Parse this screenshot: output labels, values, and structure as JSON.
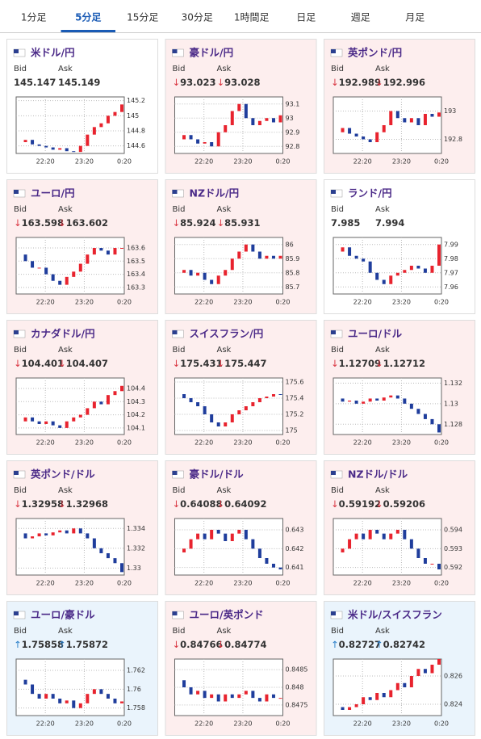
{
  "tabs": [
    "1分足",
    "5分足",
    "15分足",
    "30分足",
    "1時間足",
    "日足",
    "週足",
    "月足"
  ],
  "active_tab": 1,
  "bid_label": "Bid",
  "ask_label": "Ask",
  "time_labels": [
    "22:20",
    "23:20",
    "0:20"
  ],
  "cards": [
    {
      "name": "米ドル/円",
      "trend": "flat",
      "bid": 145.147,
      "ask": 145.149,
      "ylim": [
        144.5,
        145.25
      ],
      "yticks": [
        145.2,
        145,
        144.8,
        144.6
      ],
      "closes": [
        144.65,
        144.68,
        144.62,
        144.6,
        144.58,
        144.55,
        144.57,
        144.53,
        144.52,
        144.6,
        144.75,
        144.85,
        144.9,
        145.0,
        145.05,
        145.15
      ]
    },
    {
      "name": "豪ドル/円",
      "trend": "down",
      "arrow": "↓",
      "bid": 93.023,
      "ask": 93.028,
      "ylim": [
        92.75,
        93.15
      ],
      "yticks": [
        93.1,
        93,
        92.9,
        92.8
      ],
      "closes": [
        92.85,
        92.88,
        92.85,
        92.82,
        92.83,
        92.8,
        92.9,
        92.95,
        93.05,
        93.1,
        93.0,
        92.95,
        92.98,
        93.0,
        92.97,
        93.02
      ]
    },
    {
      "name": "英ポンド/円",
      "trend": "down",
      "arrow": "↓",
      "bid": 192.989,
      "ask": 192.996,
      "ylim": [
        192.7,
        193.1
      ],
      "yticks": [
        193,
        192.8
      ],
      "closes": [
        192.85,
        192.88,
        192.84,
        192.82,
        192.8,
        192.78,
        192.85,
        192.9,
        193.0,
        192.95,
        192.92,
        192.95,
        192.9,
        192.98,
        192.96,
        192.99
      ]
    },
    {
      "name": "ユーロ/円",
      "trend": "down",
      "arrow": "↓",
      "bid": 163.598,
      "ask": 163.602,
      "ylim": [
        163.25,
        163.68
      ],
      "yticks": [
        163.6,
        163.5,
        163.4,
        163.3
      ],
      "closes": [
        163.55,
        163.5,
        163.45,
        163.45,
        163.4,
        163.35,
        163.32,
        163.38,
        163.42,
        163.48,
        163.55,
        163.6,
        163.58,
        163.55,
        163.6,
        163.6
      ]
    },
    {
      "name": "NZドル/円",
      "trend": "down",
      "arrow": "↓",
      "bid": 85.924,
      "ask": 85.931,
      "ylim": [
        85.65,
        86.05
      ],
      "yticks": [
        86,
        85.9,
        85.8,
        85.7
      ],
      "closes": [
        85.8,
        85.82,
        85.78,
        85.8,
        85.75,
        85.72,
        85.78,
        85.82,
        85.9,
        85.95,
        86.0,
        85.95,
        85.9,
        85.92,
        85.9,
        85.92
      ]
    },
    {
      "name": "ランド/円",
      "trend": "flat",
      "bid": 7.985,
      "ask": 7.994,
      "ylim": [
        7.955,
        7.995
      ],
      "yticks": [
        7.99,
        7.98,
        7.97,
        7.96
      ],
      "closes": [
        7.985,
        7.988,
        7.982,
        7.98,
        7.978,
        7.97,
        7.965,
        7.962,
        7.968,
        7.97,
        7.972,
        7.975,
        7.973,
        7.97,
        7.975,
        7.99
      ]
    },
    {
      "name": "カナダドル/円",
      "trend": "down",
      "arrow": "↓",
      "bid": 104.401,
      "ask": 104.407,
      "ylim": [
        104.05,
        104.48
      ],
      "yticks": [
        104.4,
        104.3,
        104.2,
        104.1
      ],
      "closes": [
        104.15,
        104.18,
        104.15,
        104.13,
        104.15,
        104.12,
        104.1,
        104.15,
        104.18,
        104.2,
        104.25,
        104.3,
        104.28,
        104.35,
        104.38,
        104.42
      ]
    },
    {
      "name": "スイスフラン/円",
      "trend": "down",
      "arrow": "↓",
      "bid": 175.431,
      "ask": 175.447,
      "ylim": [
        174.95,
        175.65
      ],
      "yticks": [
        175.6,
        175.4,
        175.2,
        175
      ],
      "closes": [
        175.45,
        175.4,
        175.35,
        175.3,
        175.2,
        175.1,
        175.05,
        175.1,
        175.2,
        175.25,
        175.3,
        175.35,
        175.4,
        175.42,
        175.45,
        175.44
      ]
    },
    {
      "name": "ユーロ/ドル",
      "trend": "down",
      "arrow": "↓",
      "bid": 1.12709,
      "ask": 1.12712,
      "ylim": [
        1.127,
        1.1325
      ],
      "yticks": [
        1.132,
        1.13,
        1.128
      ],
      "closes": [
        1.1305,
        1.1302,
        1.1303,
        1.13,
        1.1302,
        1.1305,
        1.1303,
        1.1306,
        1.1308,
        1.1305,
        1.13,
        1.1295,
        1.129,
        1.1285,
        1.128,
        1.1272
      ]
    },
    {
      "name": "英ポンド/ドル",
      "trend": "down",
      "arrow": "↓",
      "bid": 1.32958,
      "ask": 1.32968,
      "ylim": [
        1.3293,
        1.335
      ],
      "yticks": [
        1.334,
        1.332,
        1.33
      ],
      "closes": [
        1.3335,
        1.333,
        1.3332,
        1.3335,
        1.3333,
        1.3336,
        1.3338,
        1.3335,
        1.334,
        1.3335,
        1.333,
        1.332,
        1.3315,
        1.331,
        1.3305,
        1.3296
      ]
    },
    {
      "name": "豪ドル/ドル",
      "trend": "down",
      "arrow": "↓",
      "bid": 0.64088,
      "ask": 0.64092,
      "ylim": [
        0.6406,
        0.6436
      ],
      "yticks": [
        0.643,
        0.642,
        0.641
      ],
      "closes": [
        0.6418,
        0.642,
        0.6425,
        0.6428,
        0.6425,
        0.643,
        0.6428,
        0.6424,
        0.6428,
        0.643,
        0.6425,
        0.642,
        0.6415,
        0.6412,
        0.641,
        0.6409
      ]
    },
    {
      "name": "NZドル/ドル",
      "trend": "down",
      "arrow": "↓",
      "bid": 0.59192,
      "ask": 0.59206,
      "ylim": [
        0.5916,
        0.5946
      ],
      "yticks": [
        0.594,
        0.593,
        0.592
      ],
      "closes": [
        0.5928,
        0.593,
        0.5935,
        0.5938,
        0.5935,
        0.594,
        0.5938,
        0.5935,
        0.5938,
        0.594,
        0.5935,
        0.593,
        0.5925,
        0.5922,
        0.5922,
        0.5919
      ]
    },
    {
      "name": "ユーロ/豪ドル",
      "trend": "up",
      "arrow": "↑",
      "bid": 1.75858,
      "ask": 1.75872,
      "ylim": [
        1.7572,
        1.7632
      ],
      "yticks": [
        1.762,
        1.76,
        1.758
      ],
      "closes": [
        1.761,
        1.7605,
        1.7595,
        1.759,
        1.7595,
        1.759,
        1.7585,
        1.7588,
        1.758,
        1.7585,
        1.7595,
        1.76,
        1.7595,
        1.759,
        1.7585,
        1.7587
      ]
    },
    {
      "name": "ユーロ/英ポンド",
      "trend": "down",
      "arrow": "↓",
      "bid": 0.84766,
      "ask": 0.84774,
      "ylim": [
        0.8472,
        0.8488
      ],
      "yticks": [
        0.8485,
        0.848,
        0.8475
      ],
      "closes": [
        0.8482,
        0.848,
        0.8478,
        0.8479,
        0.8477,
        0.8478,
        0.8476,
        0.8478,
        0.8477,
        0.8478,
        0.8479,
        0.8477,
        0.8476,
        0.8478,
        0.8477,
        0.8477
      ]
    },
    {
      "name": "米ドル/スイスフラン",
      "trend": "up",
      "arrow": "↑",
      "bid": 0.82727,
      "ask": 0.82742,
      "ylim": [
        0.8232,
        0.8272
      ],
      "yticks": [
        0.826,
        0.824
      ],
      "closes": [
        0.8238,
        0.8236,
        0.8238,
        0.824,
        0.8245,
        0.8243,
        0.8248,
        0.8245,
        0.825,
        0.8255,
        0.8252,
        0.826,
        0.8265,
        0.8262,
        0.8268,
        0.8272
      ]
    }
  ]
}
